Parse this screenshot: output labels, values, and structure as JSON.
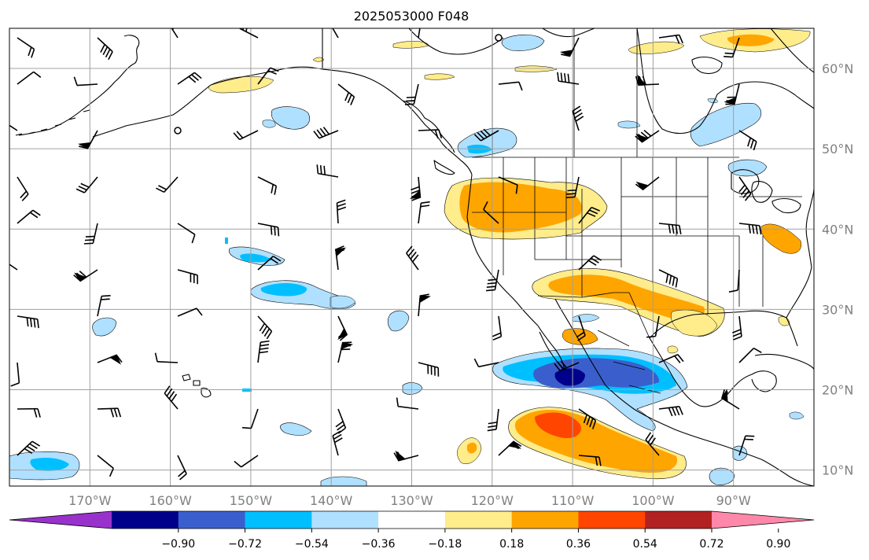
{
  "title": "2025053000 F048",
  "map": {
    "lon_range": [
      -180,
      -80
    ],
    "lat_range": [
      8,
      65
    ],
    "lon_ticks": [
      {
        "value": -170,
        "label": "170°W"
      },
      {
        "value": -160,
        "label": "160°W"
      },
      {
        "value": -150,
        "label": "150°W"
      },
      {
        "value": -140,
        "label": "140°W"
      },
      {
        "value": -130,
        "label": "130°W"
      },
      {
        "value": -120,
        "label": "120°W"
      },
      {
        "value": -110,
        "label": "110°W"
      },
      {
        "value": -100,
        "label": "100°W"
      },
      {
        "value": -90,
        "label": "90°W"
      }
    ],
    "lat_ticks": [
      {
        "value": 60,
        "label": "60°N"
      },
      {
        "value": 50,
        "label": "50°N"
      },
      {
        "value": 40,
        "label": "40°N"
      },
      {
        "value": 30,
        "label": "30°N"
      },
      {
        "value": 20,
        "label": "20°N"
      },
      {
        "value": 10,
        "label": "10°N"
      }
    ],
    "gridlines": true,
    "gridline_color": "#a0a0a0",
    "coastline_color": "#000000",
    "overlay": "wind-barbs"
  },
  "colorbar": {
    "colors": [
      "#9932cc",
      "#00008b",
      "#3a5fcd",
      "#00bfff",
      "#b0e0ff",
      "#ffffff",
      "#ffec8b",
      "#ffa500",
      "#ff4500",
      "#b22222",
      "#ff88aa"
    ],
    "levels": [
      -0.9,
      -0.72,
      -0.54,
      -0.36,
      -0.18,
      0.18,
      0.36,
      0.54,
      0.72,
      0.9
    ],
    "labels": [
      "−0.90",
      "−0.72",
      "−0.54",
      "−0.36",
      "−0.18",
      "0.18",
      "0.36",
      "0.54",
      "0.72",
      "0.90"
    ],
    "extend": "both"
  }
}
